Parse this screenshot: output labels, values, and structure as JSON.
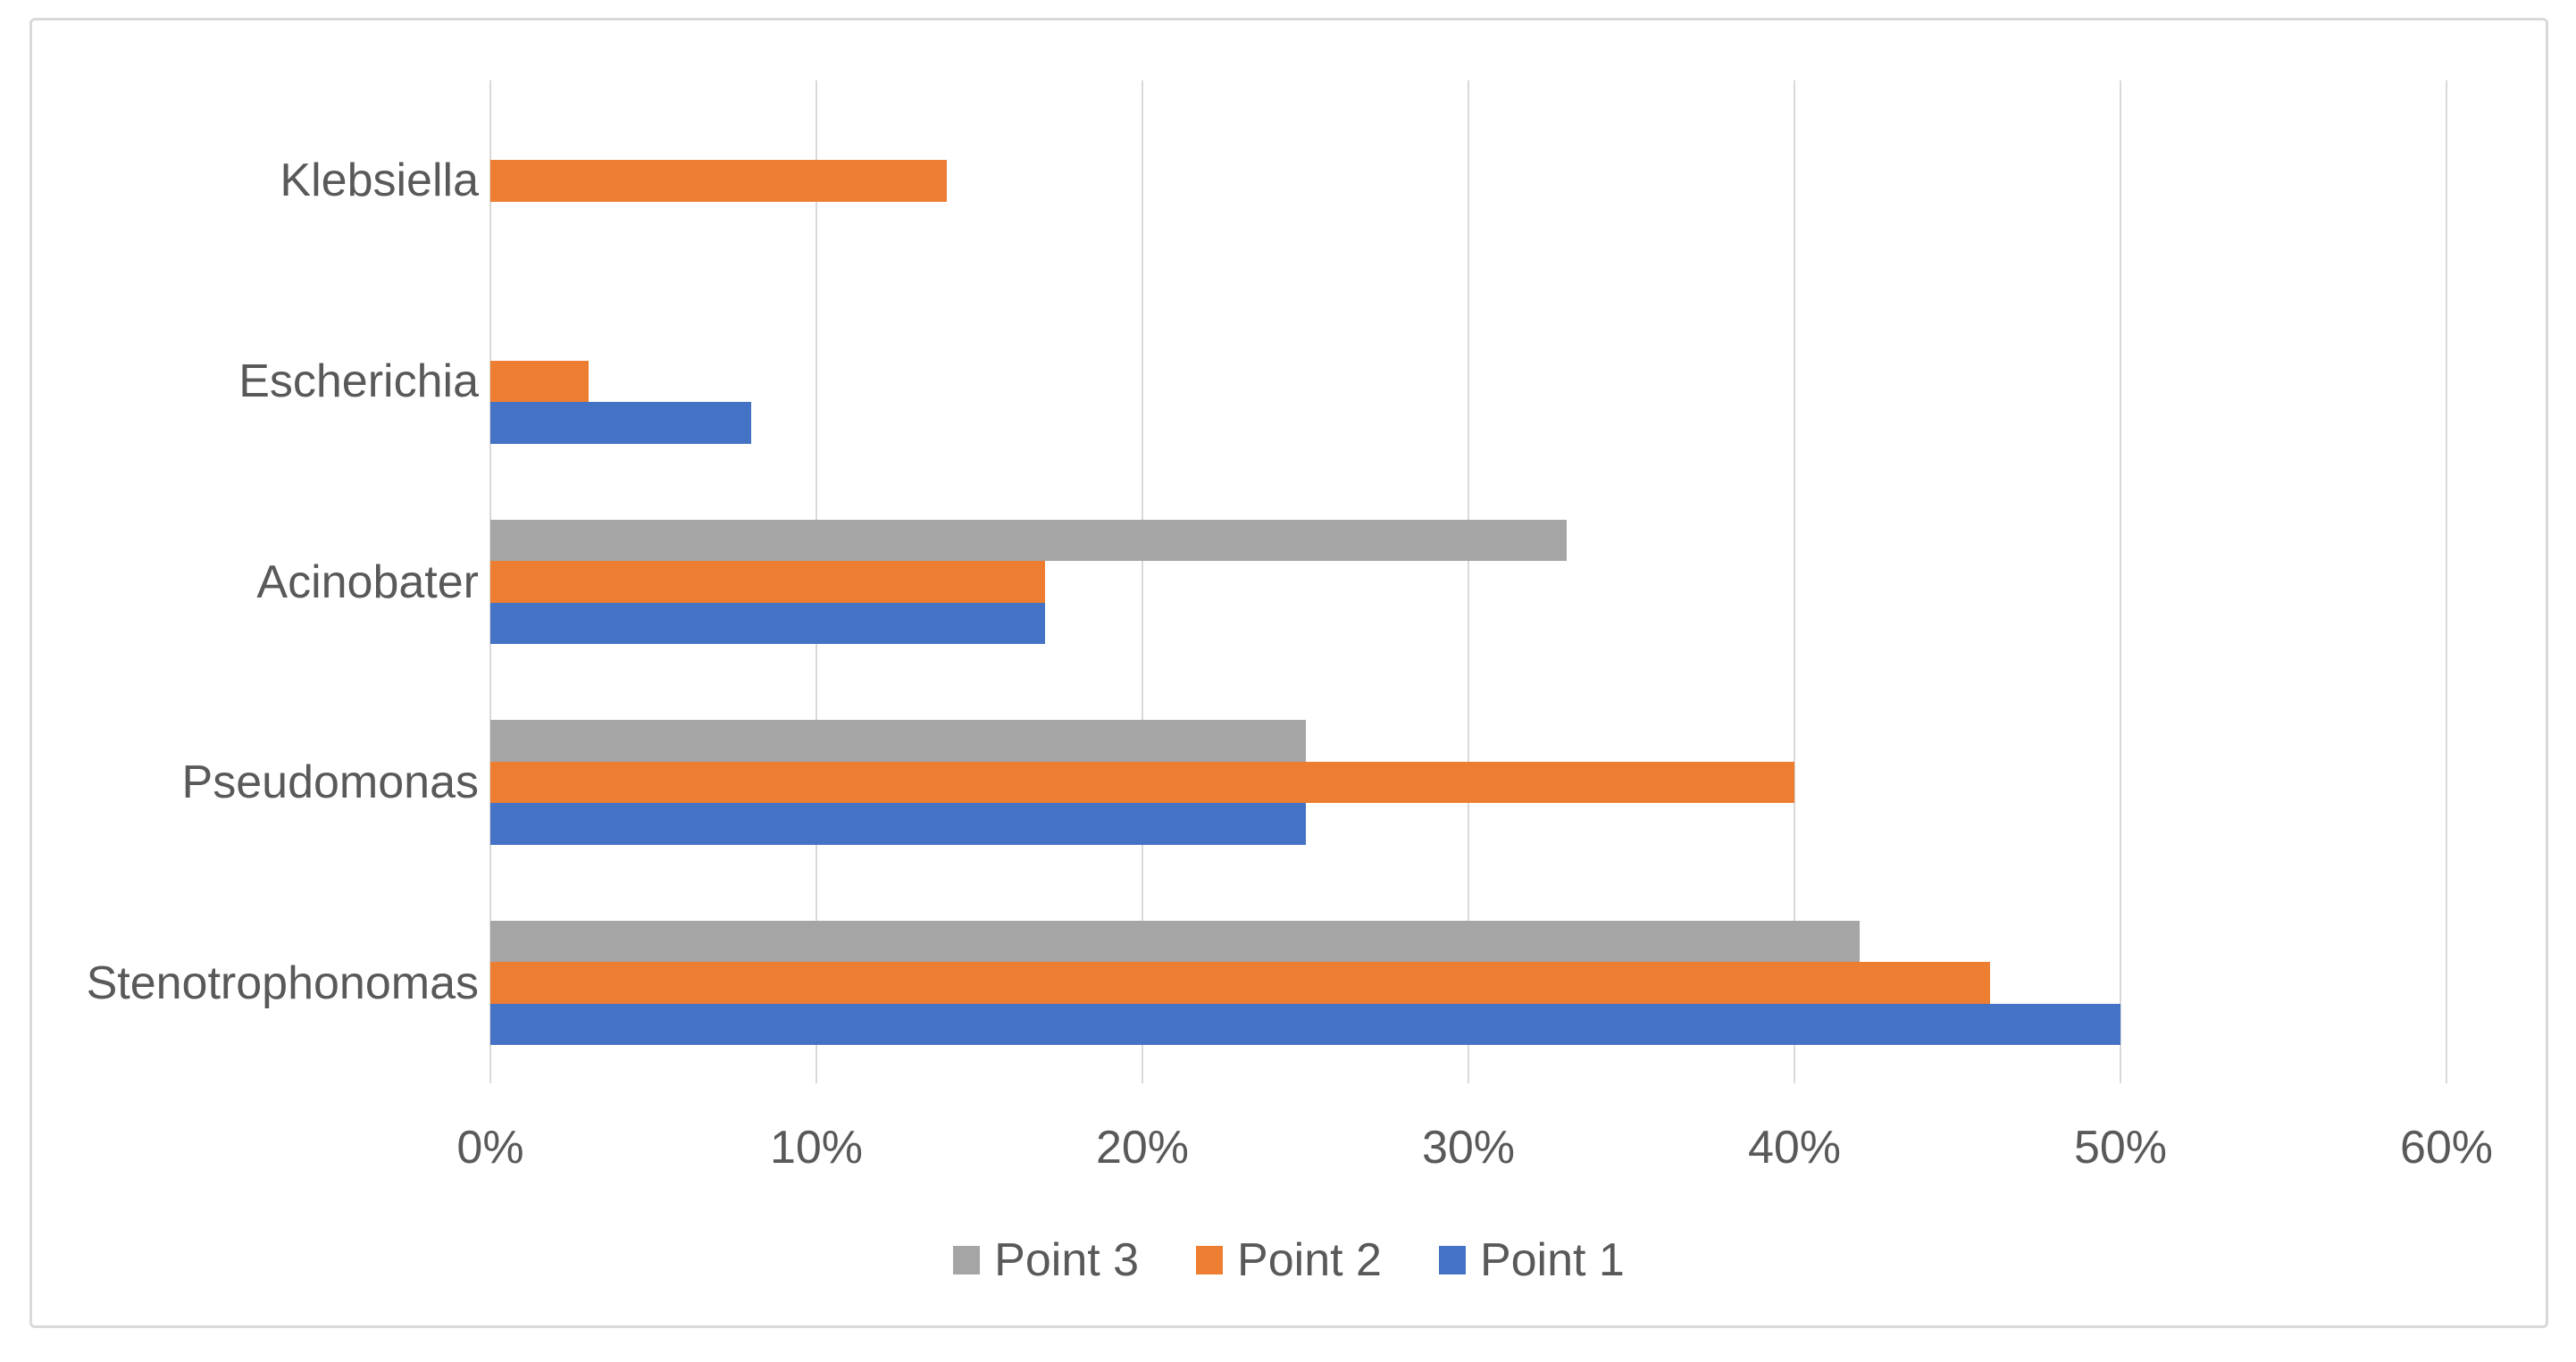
{
  "chart_data": {
    "type": "bar",
    "orientation": "horizontal",
    "categories": [
      "Klebsiella",
      "Escherichia",
      "Acinobater",
      "Pseudomonas",
      "Stenotrophonomas"
    ],
    "series": [
      {
        "name": "Point 3",
        "color": "#A5A5A5",
        "values": [
          0,
          0,
          33,
          25,
          42
        ]
      },
      {
        "name": "Point 2",
        "color": "#ED7D31",
        "values": [
          14,
          3,
          17,
          40,
          46
        ]
      },
      {
        "name": "Point 1",
        "color": "#4472C4",
        "values": [
          0,
          8,
          17,
          25,
          50
        ]
      }
    ],
    "x_axis": {
      "min": 0,
      "max": 60,
      "tick_step": 10,
      "tick_labels": [
        "0%",
        "10%",
        "20%",
        "30%",
        "40%",
        "50%",
        "60%"
      ],
      "unit": "%"
    },
    "legend": {
      "position": "bottom",
      "entries": [
        "Point 3",
        "Point 2",
        "Point 1"
      ]
    },
    "grid": true,
    "colors": {
      "gridline": "#D9D9D9",
      "text": "#595959",
      "frame_border": "#D9D9D9",
      "background": "#FFFFFF"
    }
  }
}
